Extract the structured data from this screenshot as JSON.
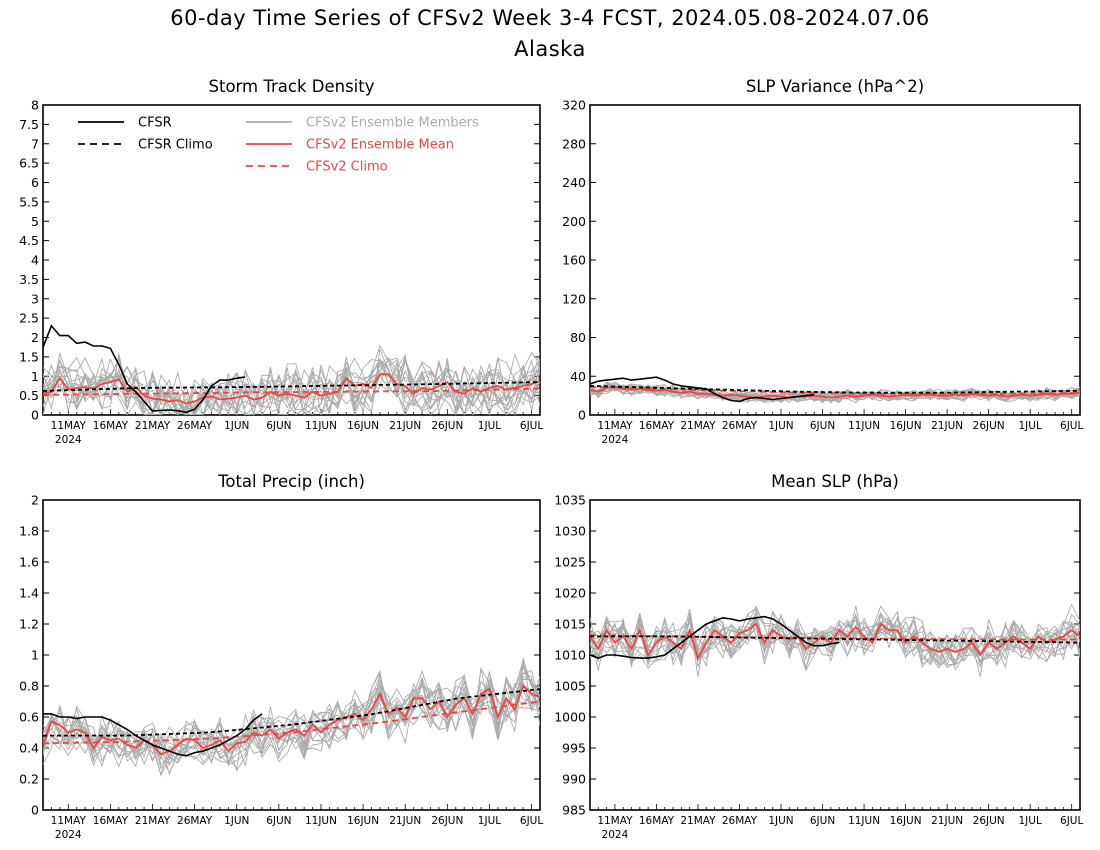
{
  "page": {
    "title": "60-day Time Series of CFSv2 Week 3-4 FCST, 2024.05.08-2024.07.06",
    "subtitle": "Alaska"
  },
  "colors": {
    "cfsr": "#000000",
    "ensemble_members": "#aaaaaa",
    "ensemble_mean": "#ee4444",
    "cfsv2_climo": "#ee4444"
  },
  "legend": {
    "entries": [
      {
        "label": "CFSR",
        "style": "solid",
        "color": "#000000"
      },
      {
        "label": "CFSR Climo",
        "style": "dashed",
        "color": "#000000"
      },
      {
        "label": "CFSv2 Ensemble Members",
        "style": "solid",
        "color": "#aaaaaa"
      },
      {
        "label": "CFSv2 Ensemble Mean",
        "style": "solid",
        "color": "#ee4444"
      },
      {
        "label": "CFSv2 Climo",
        "style": "dashed",
        "color": "#ee4444"
      }
    ]
  },
  "chart_data": [
    {
      "id": "storm",
      "type": "line",
      "title": "Storm Track Density",
      "xlabel": "",
      "ylabel": "",
      "x_ticks": [
        "11MAY",
        "16MAY",
        "21MAY",
        "26MAY",
        "1JUN",
        "6JUN",
        "11JUN",
        "16JUN",
        "21JUN",
        "26JUN",
        "1JUL",
        "6JUL"
      ],
      "x_year_label": "2024",
      "y_ticks": [
        "0",
        "0.5",
        "1",
        "1.5",
        "2",
        "2.5",
        "3",
        "3.5",
        "4",
        "4.5",
        "5",
        "5.5",
        "6",
        "6.5",
        "7",
        "7.5",
        "8"
      ],
      "ylim": [
        0,
        8
      ],
      "grid": false,
      "legend_position": "top",
      "n_members": 16,
      "member_spread": 0.6,
      "series": [
        {
          "role": "cfsr",
          "day_start": 0,
          "values": [
            1.75,
            2.3,
            2.05,
            2.05,
            1.85,
            1.88,
            1.78,
            1.78,
            1.72,
            1.3,
            0.8,
            0.6,
            0.35,
            0.1,
            0.12,
            0.13,
            0.11,
            0.07,
            0.15,
            0.4,
            0.75,
            0.9,
            0.9,
            0.95,
            0.98
          ]
        },
        {
          "role": "cfsr_climo",
          "day_start": 0,
          "values": [
            0.62,
            0.7,
            0.72,
            0.76,
            0.8,
            0.85
          ]
        },
        {
          "role": "ens_mean",
          "day_start": 0,
          "values": [
            0.55,
            0.6,
            0.95,
            0.65,
            0.7,
            0.72,
            0.68,
            0.8,
            0.85,
            0.92,
            0.6,
            0.72,
            0.5,
            0.42,
            0.4,
            0.35,
            0.38,
            0.3,
            0.35,
            0.45,
            0.48,
            0.4,
            0.42,
            0.45,
            0.5,
            0.4,
            0.45,
            0.6,
            0.5,
            0.55,
            0.5,
            0.45,
            0.6,
            0.5,
            0.55,
            0.6,
            0.95,
            0.75,
            0.8,
            0.7,
            1.05,
            1.05,
            0.8,
            0.75,
            0.55,
            0.7,
            0.65,
            0.75,
            0.85,
            0.6,
            0.55,
            0.7,
            0.6,
            0.7,
            0.75,
            0.65,
            0.7,
            0.75,
            0.8,
            0.88
          ]
        },
        {
          "role": "cfsv2_climo",
          "day_start": 0,
          "values": [
            0.52,
            0.55,
            0.58,
            0.6,
            0.62,
            0.68
          ]
        }
      ]
    },
    {
      "id": "slp_var",
      "type": "line",
      "title": "SLP Variance (hPa^2)",
      "xlabel": "",
      "ylabel": "",
      "x_ticks": [
        "11MAY",
        "16MAY",
        "21MAY",
        "26MAY",
        "1JUN",
        "6JUN",
        "11JUN",
        "16JUN",
        "21JUN",
        "26JUN",
        "1JUL",
        "6JUL"
      ],
      "x_year_label": "2024",
      "y_ticks": [
        "0",
        "40",
        "80",
        "120",
        "160",
        "200",
        "240",
        "280",
        "320"
      ],
      "ylim": [
        0,
        320
      ],
      "grid": false,
      "n_members": 16,
      "member_spread": 5,
      "series": [
        {
          "role": "cfsr",
          "day_start": 0,
          "values": [
            32,
            35,
            36,
            37,
            38,
            36,
            37,
            38,
            39,
            36,
            32,
            30,
            29,
            28,
            27,
            22,
            18,
            15,
            14,
            17,
            18,
            17,
            16,
            17,
            18,
            19,
            20,
            21
          ]
        },
        {
          "role": "cfsr_climo",
          "day_start": 0,
          "values": [
            30,
            28,
            26,
            24,
            23,
            23,
            24,
            25
          ]
        },
        {
          "role": "ens_mean",
          "day_start": 0,
          "values": [
            26,
            24,
            28,
            29,
            27,
            26,
            27,
            26,
            25,
            26,
            24,
            23,
            24,
            22,
            22,
            21,
            20,
            21,
            20,
            19,
            18,
            19,
            20,
            19,
            18,
            19,
            19,
            20,
            19,
            18,
            19,
            20,
            19,
            20,
            21,
            20,
            19,
            20,
            21,
            20,
            21,
            21,
            20,
            20,
            21,
            20,
            22,
            21,
            20,
            21,
            19,
            20,
            21,
            20,
            21,
            22,
            21,
            22,
            22,
            23
          ]
        },
        {
          "role": "cfsv2_climo",
          "day_start": 0,
          "values": [
            29,
            27,
            25,
            23,
            22,
            22,
            22,
            23
          ]
        }
      ]
    },
    {
      "id": "precip",
      "type": "line",
      "title": "Total Precip (inch)",
      "xlabel": "",
      "ylabel": "",
      "x_ticks": [
        "11MAY",
        "16MAY",
        "21MAY",
        "26MAY",
        "1JUN",
        "6JUN",
        "11JUN",
        "16JUN",
        "21JUN",
        "26JUN",
        "1JUL",
        "6JUL"
      ],
      "x_year_label": "2024",
      "y_ticks": [
        "0",
        "0.2",
        "0.4",
        "0.6",
        "0.8",
        "1",
        "1.2",
        "1.4",
        "1.6",
        "1.8",
        "2"
      ],
      "ylim": [
        0,
        2
      ],
      "grid": false,
      "n_members": 16,
      "member_spread": 0.13,
      "series": [
        {
          "role": "cfsr",
          "day_start": 0,
          "values": [
            0.62,
            0.62,
            0.6,
            0.6,
            0.59,
            0.6,
            0.6,
            0.6,
            0.58,
            0.55,
            0.52,
            0.48,
            0.45,
            0.42,
            0.4,
            0.38,
            0.36,
            0.35,
            0.37,
            0.38,
            0.4,
            0.42,
            0.45,
            0.48,
            0.52,
            0.58,
            0.62
          ]
        },
        {
          "role": "cfsr_climo",
          "day_start": 0,
          "values": [
            0.48,
            0.48,
            0.5,
            0.55,
            0.62,
            0.72,
            0.78
          ]
        },
        {
          "role": "ens_mean",
          "day_start": 0,
          "values": [
            0.42,
            0.57,
            0.55,
            0.5,
            0.52,
            0.5,
            0.4,
            0.47,
            0.45,
            0.46,
            0.42,
            0.4,
            0.45,
            0.42,
            0.36,
            0.38,
            0.42,
            0.46,
            0.45,
            0.4,
            0.42,
            0.45,
            0.38,
            0.43,
            0.44,
            0.5,
            0.48,
            0.52,
            0.46,
            0.5,
            0.52,
            0.48,
            0.55,
            0.5,
            0.55,
            0.58,
            0.6,
            0.62,
            0.58,
            0.65,
            0.75,
            0.62,
            0.66,
            0.6,
            0.72,
            0.72,
            0.65,
            0.7,
            0.6,
            0.68,
            0.72,
            0.62,
            0.75,
            0.78,
            0.6,
            0.72,
            0.65,
            0.8,
            0.75,
            0.73
          ]
        },
        {
          "role": "cfsv2_climo",
          "day_start": 0,
          "values": [
            0.43,
            0.44,
            0.46,
            0.5,
            0.56,
            0.63,
            0.7
          ]
        }
      ]
    },
    {
      "id": "mslp",
      "type": "line",
      "title": "Mean SLP (hPa)",
      "xlabel": "",
      "ylabel": "",
      "x_ticks": [
        "11MAY",
        "16MAY",
        "21MAY",
        "26MAY",
        "1JUN",
        "6JUN",
        "11JUN",
        "16JUN",
        "21JUN",
        "26JUN",
        "1JUL",
        "6JUL"
      ],
      "x_year_label": "2024",
      "y_ticks": [
        "985",
        "990",
        "995",
        "1000",
        "1005",
        "1010",
        "1015",
        "1020",
        "1025",
        "1030",
        "1035"
      ],
      "ylim": [
        985,
        1035
      ],
      "grid": false,
      "n_members": 16,
      "member_spread": 2.8,
      "series": [
        {
          "role": "cfsr",
          "day_start": 0,
          "values": [
            1010,
            1009.5,
            1010,
            1010,
            1009.8,
            1009.6,
            1009.5,
            1009.5,
            1009.7,
            1010,
            1011,
            1012,
            1013,
            1014,
            1015,
            1015.5,
            1016,
            1015.8,
            1015.5,
            1015.8,
            1016,
            1016.2,
            1015.8,
            1015,
            1014,
            1013,
            1012,
            1011.5,
            1011.5,
            1011.8,
            1012
          ]
        },
        {
          "role": "cfsr_climo",
          "day_start": 0,
          "values": [
            1013,
            1013,
            1012.8,
            1012.6,
            1012.4,
            1012.2,
            1012
          ]
        },
        {
          "role": "ens_mean",
          "day_start": 0,
          "values": [
            1013,
            1011,
            1014,
            1012,
            1013,
            1011,
            1014,
            1010,
            1012,
            1013,
            1012,
            1011,
            1014,
            1009.5,
            1012,
            1014,
            1013,
            1012,
            1013.5,
            1014,
            1015,
            1012,
            1014,
            1013,
            1012.5,
            1013,
            1011,
            1012,
            1013,
            1012,
            1014,
            1013,
            1014.5,
            1013,
            1012,
            1015,
            1014,
            1014,
            1012,
            1013,
            1012,
            1011,
            1010.5,
            1011,
            1010.5,
            1011,
            1012,
            1010,
            1012,
            1011,
            1012,
            1013,
            1012,
            1011,
            1013,
            1012,
            1012.5,
            1013,
            1014,
            1013
          ]
        },
        {
          "role": "cfsv2_climo",
          "day_start": 0,
          "values": [
            1013.2,
            1013,
            1012.8,
            1012.7,
            1012.6,
            1012.5,
            1012.5
          ]
        }
      ]
    }
  ]
}
